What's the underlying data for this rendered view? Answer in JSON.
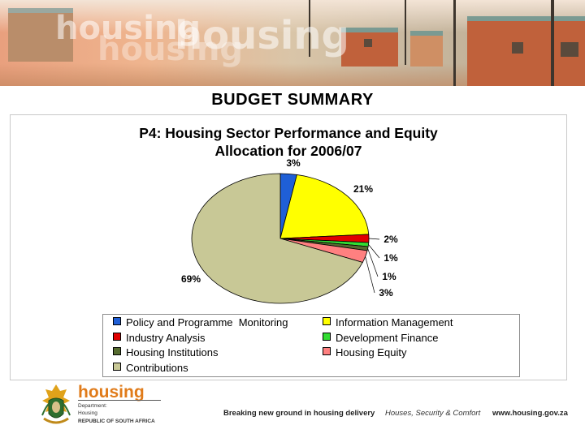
{
  "slide": {
    "heading": "BUDGET SUMMARY",
    "footer": {
      "brand": "housing",
      "dept_line1": "Department:",
      "dept_line2": "Housing",
      "dept_line3": "REPUBLIC OF SOUTH AFRICA",
      "tagline": "Breaking new ground in housing delivery",
      "motto": "Houses, Security & Comfort",
      "url": "www.housing.gov.za"
    },
    "banner": {
      "watermark": "housing"
    }
  },
  "chart_data": {
    "type": "pie",
    "title_line1": "P4: Housing Sector Performance and Equity",
    "title_line2": "Allocation for 2006/07",
    "series": [
      {
        "name": "Policy and Programme  Monitoring",
        "value": 3,
        "label": "3%",
        "color": "#1f5fd6"
      },
      {
        "name": "Information Management",
        "value": 21,
        "label": "21%",
        "color": "#ffff00"
      },
      {
        "name": "Industry Analysis",
        "value": 2,
        "label": "2%",
        "color": "#e00000"
      },
      {
        "name": "Development Finance",
        "value": 1,
        "label": "1%",
        "color": "#33dd33"
      },
      {
        "name": "Housing Institutions",
        "value": 1,
        "label": "1%",
        "color": "#556b2f"
      },
      {
        "name": "Housing Equity",
        "value": 3,
        "label": "3%",
        "color": "#ff8080"
      },
      {
        "name": "Contributions",
        "value": 69,
        "label": "69%",
        "color": "#c8c896"
      }
    ],
    "legend_position": "bottom"
  }
}
